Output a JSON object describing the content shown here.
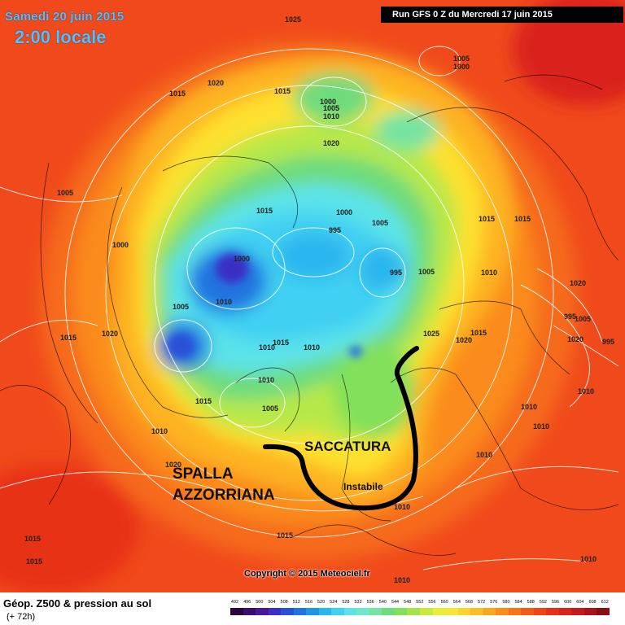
{
  "header": {
    "date": "Samedi 20 juin 2015",
    "time": "2:00 locale",
    "run": "Run GFS 0 Z du Mercredi 17 juin 2015"
  },
  "annotations": {
    "trough": "SACCATURA",
    "ridge_line1": "SPALLA",
    "ridge_line2": "AZZORRIANA",
    "unstable": "Instabile"
  },
  "copyright": "Copyright © 2015 Meteociel.fr",
  "legend": {
    "title": "Géop. Z500 & pression au sol",
    "subtitle": "(+ 72h)",
    "ticks": [
      "492",
      "496",
      "500",
      "504",
      "508",
      "512",
      "516",
      "520",
      "524",
      "528",
      "532",
      "536",
      "540",
      "544",
      "548",
      "552",
      "556",
      "560",
      "564",
      "568",
      "572",
      "576",
      "580",
      "584",
      "588",
      "592",
      "596",
      "600",
      "604",
      "608",
      "612"
    ],
    "colors": [
      "#2a0640",
      "#3a0e6b",
      "#4b169a",
      "#3b2fc4",
      "#2a50d8",
      "#2073e0",
      "#1e96e6",
      "#29b6ee",
      "#3fd0f2",
      "#5ce3e9",
      "#6ee8c8",
      "#73e4a2",
      "#6edc7c",
      "#82e05a",
      "#a4e44a",
      "#c9ea3d",
      "#e8ee36",
      "#f7e633",
      "#fdd42c",
      "#fdbd26",
      "#fda51f",
      "#fb8d1a",
      "#f87318",
      "#f45a17",
      "#ef4417",
      "#e83018",
      "#d9241c",
      "#c41c1e",
      "#a8141a",
      "#8a0e16"
    ]
  },
  "isobar_labels": [
    "1025",
    "1005",
    "1000",
    "1015",
    "1020",
    "1015",
    "1000",
    "1005",
    "1010",
    "1020",
    "1005",
    "1000",
    "1015",
    "1015",
    "1000",
    "995",
    "1005",
    "995",
    "1005",
    "1015",
    "1010",
    "1020",
    "1005",
    "1010",
    "1020",
    "995",
    "1000",
    "1005",
    "1010",
    "1015",
    "1010",
    "1010",
    "1025",
    "1015",
    "1020",
    "1020",
    "995",
    "1005",
    "1010",
    "1015",
    "1015",
    "1010",
    "1010",
    "1010",
    "1020",
    "1015",
    "1015",
    "1015",
    "1010",
    "1010",
    "1010",
    "1010"
  ]
}
